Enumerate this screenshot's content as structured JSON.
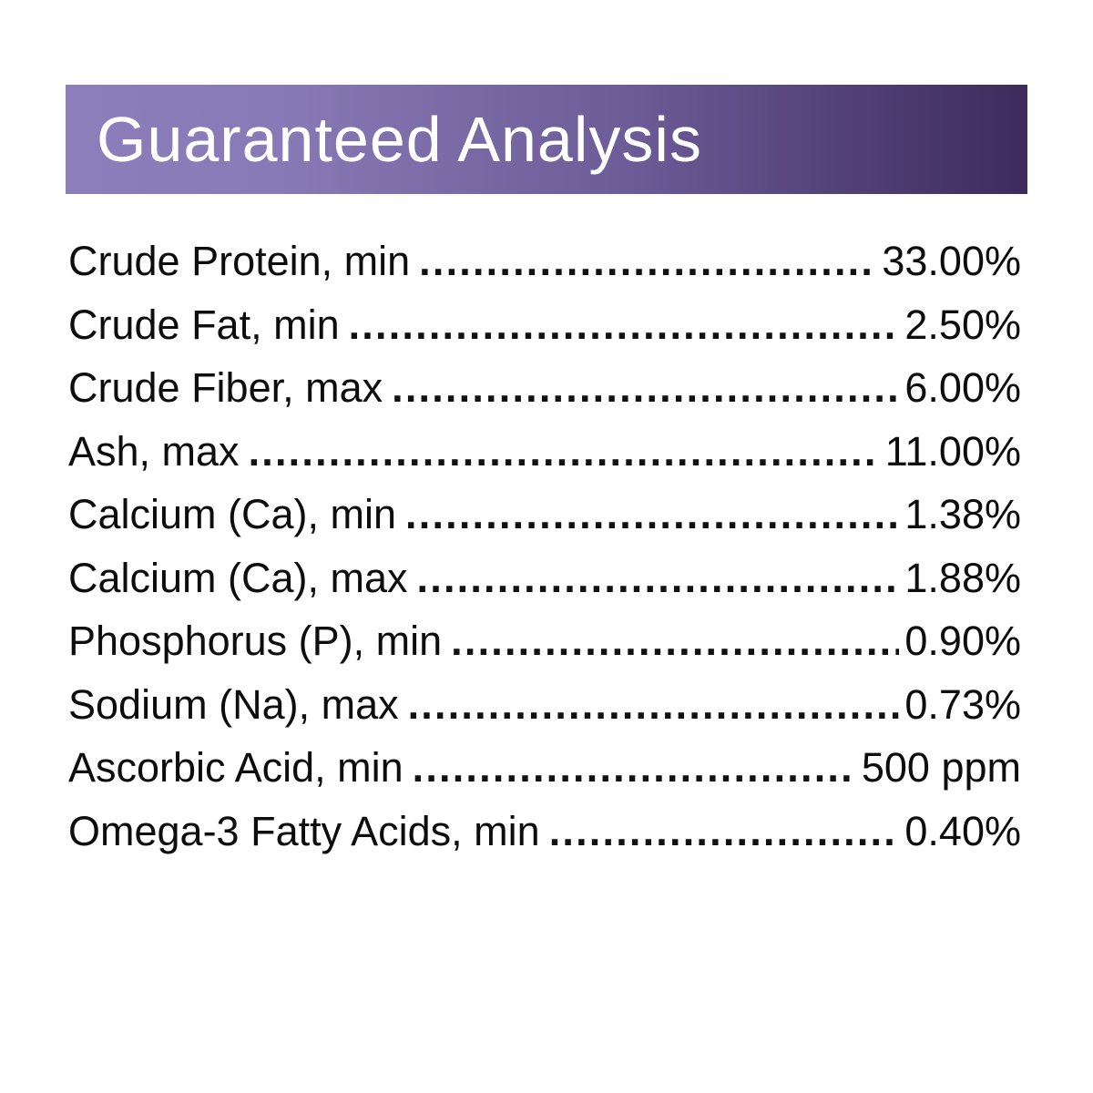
{
  "header": {
    "title": "Guaranteed Analysis",
    "gradient_left_color": "#8c7eba",
    "gradient_right_color": "#3d2b5c",
    "text_color": "#ffffff"
  },
  "analysis": {
    "rows": [
      {
        "label": "Crude Protein, min",
        "value": "33.00%"
      },
      {
        "label": "Crude Fat, min",
        "value": "2.50%"
      },
      {
        "label": "Crude Fiber, max",
        "value": "6.00%"
      },
      {
        "label": "Ash, max",
        "value": "11.00%"
      },
      {
        "label": "Calcium (Ca), min",
        "value": "1.38%"
      },
      {
        "label": "Calcium (Ca), max",
        "value": "1.88%"
      },
      {
        "label": "Phosphorus (P), min",
        "value": "0.90%"
      },
      {
        "label": "Sodium (Na), max",
        "value": "0.73%"
      },
      {
        "label": "Ascorbic Acid, min",
        "value": "500 ppm"
      },
      {
        "label": "Omega-3 Fatty Acids, min",
        "value": "0.40%"
      }
    ]
  }
}
